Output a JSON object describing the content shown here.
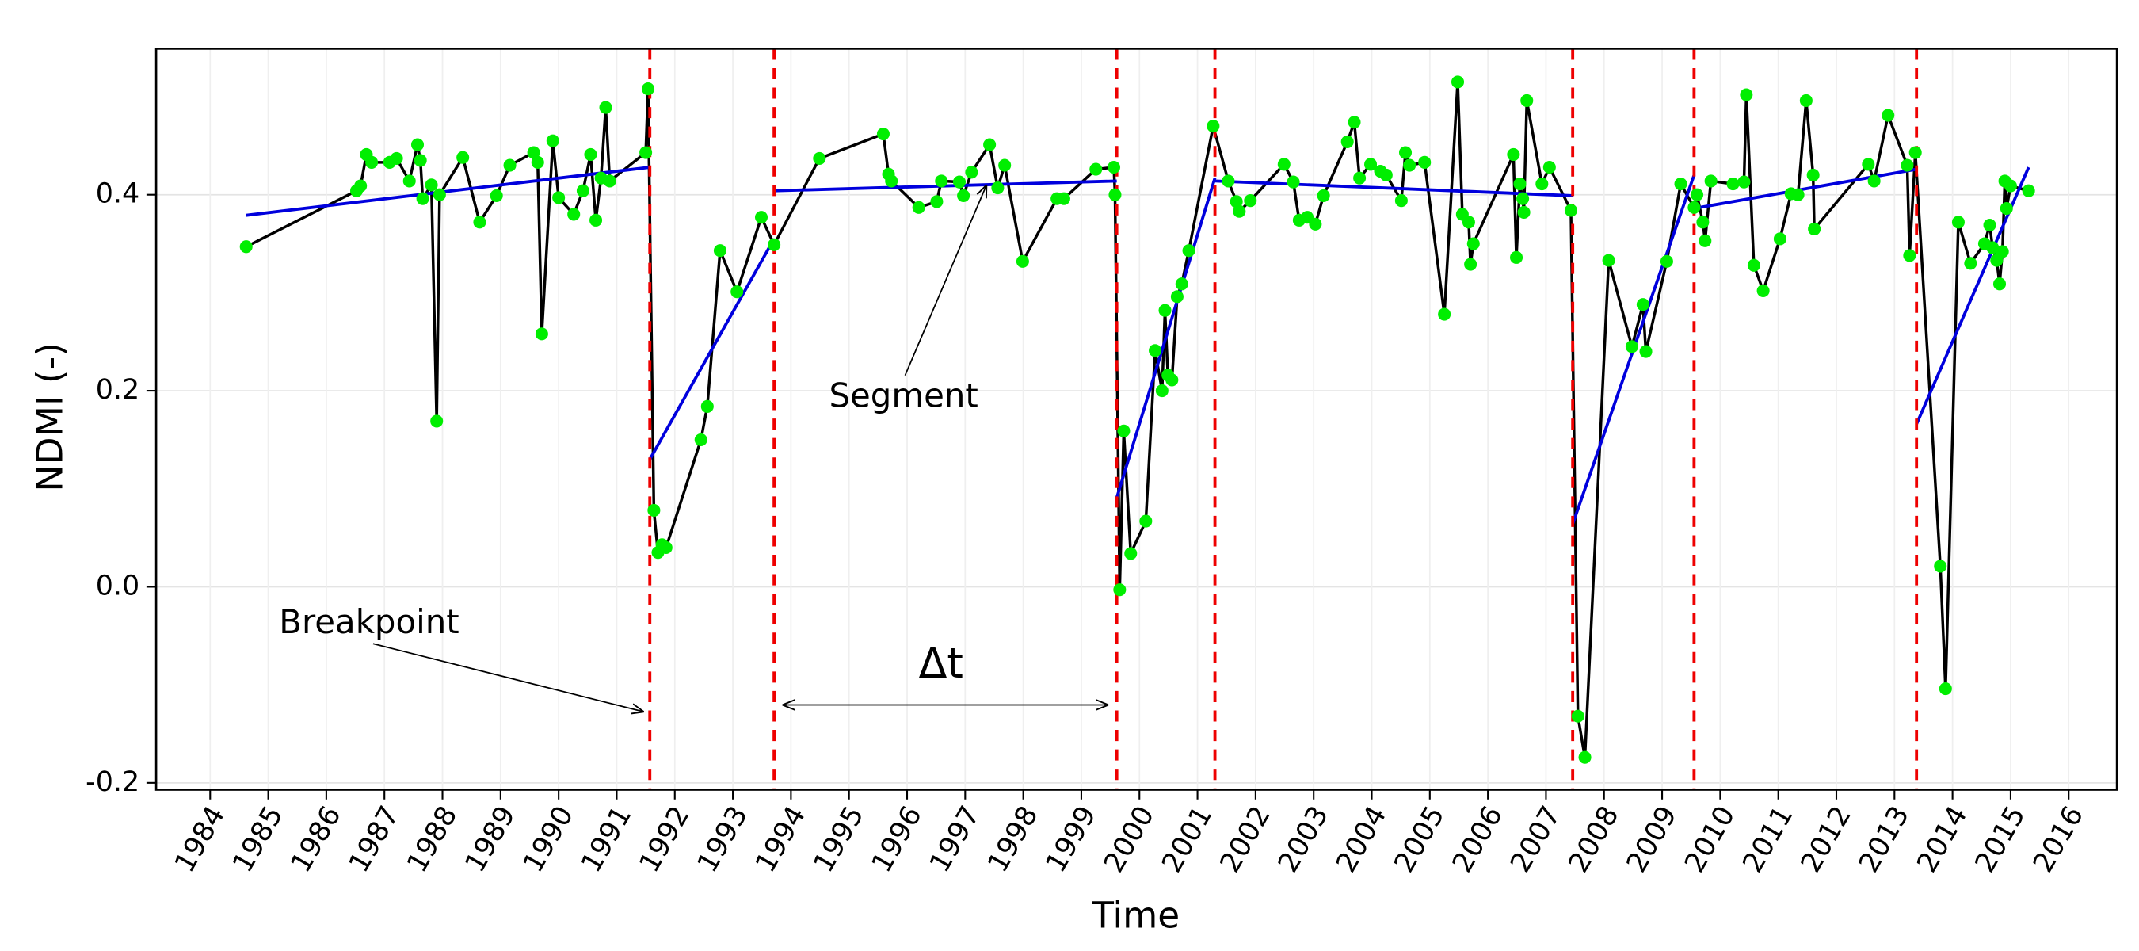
{
  "chart_data": {
    "type": "line",
    "xlabel": "Time",
    "ylabel": "NDMI (-)",
    "annotations": {
      "segment": "Segment",
      "breakpoint": "Breakpoint",
      "delta": "Δt"
    },
    "xlim": [
      1983.07,
      2016.83
    ],
    "xticks": [
      1984,
      1985,
      1986,
      1987,
      1988,
      1989,
      1990,
      1991,
      1992,
      1993,
      1994,
      1995,
      1996,
      1997,
      1998,
      1999,
      2000,
      2001,
      2002,
      2003,
      2004,
      2005,
      2006,
      2007,
      2008,
      2009,
      2010,
      2011,
      2012,
      2013,
      2014,
      2015,
      2016
    ],
    "ylim": [
      -0.207,
      0.549
    ],
    "yticks": [
      -0.2,
      {
        "value": 0,
        "label": "0.0"
      },
      0.2,
      0.4
    ],
    "grid": true,
    "observations": {
      "color": "#000000",
      "marker_color": "#00ee00",
      "x": [
        1984.62,
        1986.52,
        1986.59,
        1986.69,
        1986.78,
        1987.09,
        1987.21,
        1987.43,
        1987.57,
        1987.62,
        1987.66,
        1987.81,
        1987.9,
        1987.95,
        1988.35,
        1988.64,
        1988.93,
        1989.16,
        1989.57,
        1989.64,
        1989.71,
        1989.9,
        1990.0,
        1990.26,
        1990.42,
        1990.55,
        1990.64,
        1990.73,
        1990.81,
        1990.88,
        1991.5,
        1991.54,
        1991.64,
        1991.71,
        1991.78,
        1991.85,
        1992.45,
        1992.56,
        1992.78,
        1993.07,
        1993.49,
        1993.71,
        1994.49,
        1995.59,
        1995.68,
        1995.73,
        1996.2,
        1996.51,
        1996.59,
        1996.9,
        1996.97,
        1997.11,
        1997.42,
        1997.56,
        1997.68,
        1997.99,
        1998.58,
        1998.7,
        1999.25,
        1999.56,
        1999.58,
        1999.66,
        1999.73,
        1999.85,
        2000.11,
        2000.27,
        2000.39,
        2000.44,
        2000.49,
        2000.56,
        2000.65,
        2000.73,
        2000.85,
        2001.27,
        2001.53,
        2001.67,
        2001.72,
        2001.91,
        2002.49,
        2002.65,
        2002.75,
        2002.89,
        2003.03,
        2003.17,
        2003.58,
        2003.7,
        2003.79,
        2003.98,
        2004.15,
        2004.25,
        2004.51,
        2004.58,
        2004.65,
        2004.91,
        2005.25,
        2005.48,
        2005.56,
        2005.67,
        2005.7,
        2005.75,
        2006.44,
        2006.49,
        2006.55,
        2006.6,
        2006.62,
        2006.67,
        2006.93,
        2007.06,
        2007.43,
        2007.55,
        2007.67,
        2008.08,
        2008.48,
        2008.67,
        2008.72,
        2009.08,
        2009.32,
        2009.55,
        2009.6,
        2009.7,
        2009.74,
        2009.84,
        2010.22,
        2010.41,
        2010.45,
        2010.58,
        2010.74,
        2011.03,
        2011.22,
        2011.34,
        2011.48,
        2011.6,
        2011.62,
        2012.55,
        2012.65,
        2012.89,
        2013.22,
        2013.26,
        2013.36,
        2013.79,
        2013.88,
        2014.1,
        2014.31,
        2014.55,
        2014.64,
        2014.69,
        2014.76,
        2014.81,
        2014.86,
        2014.9,
        2014.93,
        2015.0,
        2015.31
      ],
      "values": [
        0.347,
        0.404,
        0.409,
        0.441,
        0.433,
        0.433,
        0.437,
        0.414,
        0.451,
        0.435,
        0.396,
        0.41,
        0.169,
        0.4,
        0.438,
        0.372,
        0.399,
        0.43,
        0.443,
        0.433,
        0.258,
        0.455,
        0.397,
        0.38,
        0.404,
        0.441,
        0.374,
        0.417,
        0.489,
        0.414,
        0.443,
        0.508,
        0.078,
        0.035,
        0.043,
        0.04,
        0.15,
        0.184,
        0.343,
        0.301,
        0.377,
        0.349,
        0.437,
        0.462,
        0.421,
        0.414,
        0.387,
        0.393,
        0.414,
        0.413,
        0.399,
        0.423,
        0.451,
        0.407,
        0.43,
        0.332,
        0.396,
        0.396,
        0.426,
        0.428,
        0.4,
        -0.003,
        0.159,
        0.034,
        0.067,
        0.241,
        0.2,
        0.282,
        0.216,
        0.211,
        0.296,
        0.309,
        0.343,
        0.47,
        0.414,
        0.393,
        0.383,
        0.394,
        0.431,
        0.413,
        0.374,
        0.377,
        0.37,
        0.399,
        0.454,
        0.474,
        0.417,
        0.431,
        0.424,
        0.42,
        0.394,
        0.443,
        0.43,
        0.433,
        0.278,
        0.515,
        0.38,
        0.372,
        0.329,
        0.35,
        0.441,
        0.336,
        0.411,
        0.396,
        0.382,
        0.496,
        0.411,
        0.428,
        0.384,
        -0.132,
        -0.174,
        0.333,
        0.245,
        0.288,
        0.24,
        0.332,
        0.411,
        0.387,
        0.4,
        0.372,
        0.353,
        0.414,
        0.411,
        0.413,
        0.502,
        0.328,
        0.302,
        0.355,
        0.401,
        0.4,
        0.496,
        0.42,
        0.365,
        0.431,
        0.414,
        0.481,
        0.43,
        0.338,
        0.443,
        0.021,
        -0.104,
        0.372,
        0.33,
        0.35,
        0.369,
        0.346,
        0.333,
        0.309,
        0.342,
        0.414,
        0.386,
        0.409,
        0.404
      ]
    },
    "segment_color": "#0000dd",
    "segments": [
      {
        "x": [
          1984.62,
          1991.57
        ],
        "values": [
          0.379,
          0.428
        ]
      },
      {
        "x": [
          1991.57,
          1993.71
        ],
        "values": [
          0.13,
          0.355
        ]
      },
      {
        "x": [
          1993.71,
          1999.61
        ],
        "values": [
          0.404,
          0.414
        ]
      },
      {
        "x": [
          1999.61,
          2001.3
        ],
        "values": [
          0.091,
          0.417
        ]
      },
      {
        "x": [
          2001.3,
          2007.46
        ],
        "values": [
          0.414,
          0.399
        ]
      },
      {
        "x": [
          2007.46,
          2009.55
        ],
        "values": [
          0.064,
          0.42
        ]
      },
      {
        "x": [
          2009.55,
          2013.38
        ],
        "values": [
          0.386,
          0.426
        ]
      },
      {
        "x": [
          2013.38,
          2015.31
        ],
        "values": [
          0.166,
          0.428
        ]
      }
    ],
    "breakpoint_color": "#ee0000",
    "breakpoints": [
      1991.57,
      1993.71,
      1999.61,
      2001.3,
      2007.46,
      2009.55,
      2013.38
    ]
  }
}
